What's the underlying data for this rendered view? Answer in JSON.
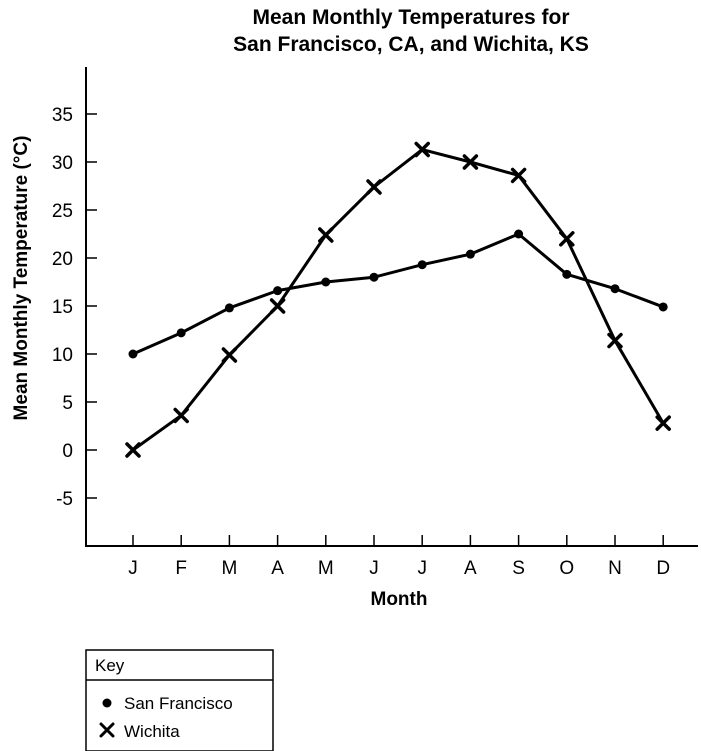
{
  "chart_data": {
    "type": "line",
    "title_lines": [
      "Mean Monthly Temperatures for",
      "San Francisco, CA, and Wichita, KS"
    ],
    "xlabel": "Month",
    "ylabel": "Mean Monthly Temperature (°C)",
    "categories": [
      "J",
      "F",
      "M",
      "A",
      "M",
      "J",
      "J",
      "A",
      "S",
      "O",
      "N",
      "D"
    ],
    "y_ticks": [
      "35",
      "30",
      "25",
      "20",
      "15",
      "10",
      "5",
      "0",
      "-5"
    ],
    "ylim": [
      -10,
      40
    ],
    "grid": false,
    "legend_position": "bottom-left",
    "legend_title": "Key",
    "series": [
      {
        "name": "San Francisco",
        "marker": "dot",
        "values": [
          10.0,
          12.2,
          14.8,
          16.6,
          17.5,
          18.0,
          19.3,
          20.4,
          22.5,
          18.3,
          16.8,
          14.9
        ]
      },
      {
        "name": "Wichita",
        "marker": "x",
        "values": [
          0.0,
          3.6,
          9.9,
          15.0,
          22.4,
          27.4,
          31.3,
          30.0,
          28.6,
          22.0,
          11.4,
          2.8
        ]
      }
    ],
    "line_color": "#000000"
  }
}
